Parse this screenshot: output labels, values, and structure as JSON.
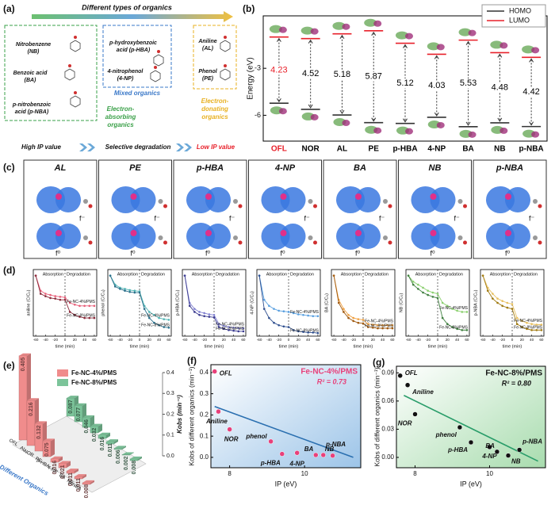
{
  "panel_a": {
    "label": "(a)",
    "header": "Different types of organics",
    "electron_absorbing": {
      "items": [
        [
          "Nitrobenzene",
          "(NB)"
        ],
        [
          "Benzoic acid",
          "(BA)"
        ],
        [
          "p-nitrobenzoic",
          "acid (p-NBA)"
        ]
      ],
      "caption": [
        "Electron-",
        "absorbing",
        "organics"
      ]
    },
    "mixed": {
      "items": [
        [
          "p-hydroxybenzoic",
          "acid (p-HBA)"
        ],
        [
          "4-nitrophenol",
          "(4-NP)"
        ]
      ],
      "caption": "Mixed organics"
    },
    "electron_donating": {
      "items": [
        [
          "Aniline",
          "(AL)"
        ],
        [
          "Phenol",
          "(PE)"
        ]
      ],
      "caption": [
        "Electron-",
        "donating",
        "organics"
      ]
    },
    "footer": [
      "High IP value",
      "Selective degradation",
      "Low IP value"
    ]
  },
  "panel_c": {
    "label": "(c)",
    "molecules": [
      "AL",
      "PE",
      "p-HBA",
      "4-NP",
      "BA",
      "NB",
      "p-NBA"
    ],
    "f_minus": "f⁻",
    "f_zero": "f⁰"
  },
  "chart_data": [
    {
      "type": "energy_levels",
      "panel_label": "(b)",
      "y_label": "Energy (eV)",
      "categories": [
        "OFL",
        "NOR",
        "AL",
        "PE",
        "p-HBA",
        "4-NP",
        "BA",
        "NB",
        "p-NBA"
      ],
      "label_colors": [
        "#e8202a",
        "#000000",
        "#000000",
        "#000000",
        "#000000",
        "#000000",
        "#000000",
        "#000000",
        "#000000"
      ],
      "series": [
        {
          "name": "HOMO",
          "color": "#333333",
          "values": [
            -5.23,
            -5.62,
            -5.98,
            -6.47,
            -6.52,
            -6.13,
            -6.73,
            -6.48,
            -6.72
          ]
        },
        {
          "name": "LUMO",
          "color": "#e8202a",
          "values": [
            -1.0,
            -1.1,
            -0.8,
            -0.6,
            -1.4,
            -2.1,
            -1.2,
            -2.0,
            -2.3
          ]
        }
      ],
      "gaps": [
        4.23,
        4.52,
        5.18,
        5.87,
        5.12,
        4.03,
        5.53,
        4.48,
        4.42
      ],
      "gap_colors": [
        "#e8202a",
        "#000000",
        "#000000",
        "#000000",
        "#000000",
        "#000000",
        "#000000",
        "#000000",
        "#000000"
      ],
      "ylim": [
        -7.65,
        0.35
      ],
      "yticks": [
        -3,
        -6
      ],
      "legend": "upper right"
    },
    {
      "type": "line",
      "panel_label": "(d)",
      "y_label": "aniline (C/C₀)",
      "x_label": "time (min)",
      "annotations": [
        "Absorption",
        "Degradation"
      ],
      "divider": 0,
      "x": [
        -60,
        -50,
        -40,
        -30,
        -20,
        -10,
        0,
        10,
        20,
        30,
        40,
        50,
        60
      ],
      "xlim": [
        -65,
        65
      ],
      "xticks": [
        -60,
        -40,
        -20,
        0,
        20,
        40,
        60
      ],
      "ylim": [
        0,
        1.1
      ],
      "series": [
        {
          "name": "Fe-NC-4%/PMS",
          "color": "#e8607a",
          "values": [
            1,
            0.75,
            0.7,
            0.68,
            0.66,
            0.65,
            0.64,
            0.55,
            0.52,
            0.5,
            0.5,
            0.5,
            0.5
          ]
        },
        {
          "name": "Fe-NC-8%/PMS",
          "color": "#8a2a3a",
          "values": [
            1,
            0.7,
            0.66,
            0.63,
            0.62,
            0.6,
            0.6,
            0.4,
            0.35,
            0.32,
            0.3,
            0.3,
            0.3
          ]
        }
      ]
    },
    {
      "type": "line",
      "y_label": "phenol (C/C₀)",
      "x_label": "time (min)",
      "annotations": [
        "Absorption",
        "Degradation"
      ],
      "divider": 0,
      "x": [
        -60,
        -50,
        -40,
        -30,
        -20,
        -10,
        0,
        10,
        20,
        30,
        40,
        50,
        60
      ],
      "xlim": [
        -65,
        65
      ],
      "xticks": [
        -60,
        -40,
        -20,
        0,
        20,
        40,
        60
      ],
      "ylim": [
        0,
        1.1
      ],
      "series": [
        {
          "name": "Fe-NC-4%/PMS",
          "color": "#4fb3b3",
          "values": [
            1,
            0.85,
            0.8,
            0.78,
            0.76,
            0.75,
            0.74,
            0.5,
            0.4,
            0.35,
            0.3,
            0.28,
            0.27
          ]
        },
        {
          "name": "Fe-NC-8%/PMS",
          "color": "#2a6f8a",
          "values": [
            1,
            0.82,
            0.78,
            0.75,
            0.73,
            0.72,
            0.72,
            0.45,
            0.3,
            0.22,
            0.18,
            0.15,
            0.14
          ]
        }
      ]
    },
    {
      "type": "line",
      "y_label": "p-HBA (C/C₀)",
      "x_label": "time (min)",
      "annotations": [
        "Absorption",
        "Degradation"
      ],
      "divider": 0,
      "x": [
        -60,
        -50,
        -40,
        -30,
        -20,
        -10,
        0,
        10,
        20,
        30,
        40,
        50,
        60
      ],
      "xlim": [
        -65,
        65
      ],
      "xticks": [
        -60,
        -40,
        -20,
        0,
        20,
        40,
        60
      ],
      "ylim": [
        0,
        1.1
      ],
      "series": [
        {
          "name": "Fe-NC-4%/PMS",
          "color": "#8080d0",
          "values": [
            1,
            0.55,
            0.45,
            0.4,
            0.38,
            0.36,
            0.35,
            0.2,
            0.17,
            0.15,
            0.14,
            0.13,
            0.13
          ]
        },
        {
          "name": "Fe-NC-8%/PMS",
          "color": "#3b3b90",
          "values": [
            1,
            0.5,
            0.4,
            0.35,
            0.33,
            0.32,
            0.31,
            0.15,
            0.12,
            0.1,
            0.09,
            0.08,
            0.08
          ]
        }
      ]
    },
    {
      "type": "line",
      "y_label": "4-NP (C/C₀)",
      "x_label": "time (min)",
      "annotations": [
        "Absorption",
        "Degradation"
      ],
      "divider": 0,
      "x": [
        -60,
        -50,
        -40,
        -30,
        -20,
        -10,
        0,
        10,
        20,
        30,
        40,
        50,
        60
      ],
      "xlim": [
        -65,
        65
      ],
      "xticks": [
        -60,
        -40,
        -20,
        0,
        20,
        40,
        60
      ],
      "ylim": [
        0,
        1.1
      ],
      "series": [
        {
          "name": "Fe-NC-4%/PMS",
          "color": "#5aa0e0",
          "values": [
            1,
            0.6,
            0.5,
            0.45,
            0.42,
            0.41,
            0.4,
            0.38,
            0.36,
            0.35,
            0.34,
            0.33,
            0.33
          ]
        },
        {
          "name": "Fe-NC-8%/PMS",
          "color": "#2f4f8f",
          "values": [
            1,
            0.45,
            0.3,
            0.22,
            0.18,
            0.16,
            0.15,
            0.1,
            0.08,
            0.07,
            0.06,
            0.06,
            0.05
          ]
        }
      ]
    },
    {
      "type": "line",
      "y_label": "BA (C/C₀)",
      "x_label": "time (min)",
      "annotations": [
        "Absorption",
        "Degradation"
      ],
      "divider": 0,
      "x": [
        -60,
        -50,
        -40,
        -30,
        -20,
        -10,
        0,
        10,
        20,
        30,
        40,
        50,
        60
      ],
      "xlim": [
        -65,
        65
      ],
      "xticks": [
        -60,
        -40,
        -20,
        0,
        20,
        40,
        60
      ],
      "ylim": [
        0,
        1.1
      ],
      "series": [
        {
          "name": "Fe-NC-4%/PMS",
          "color": "#f0a040",
          "values": [
            1,
            0.6,
            0.45,
            0.35,
            0.3,
            0.28,
            0.27,
            0.2,
            0.19,
            0.18,
            0.18,
            0.18,
            0.18
          ]
        },
        {
          "name": "Fe-NC-8%/PMS",
          "color": "#a05a10",
          "values": [
            1,
            0.55,
            0.4,
            0.3,
            0.25,
            0.22,
            0.21,
            0.15,
            0.14,
            0.13,
            0.13,
            0.13,
            0.13
          ]
        }
      ]
    },
    {
      "type": "line",
      "y_label": "NB (C/C₀)",
      "x_label": "time (min)",
      "annotations": [
        "Absorption",
        "Degradation"
      ],
      "divider": 0,
      "x": [
        -60,
        -50,
        -40,
        -30,
        -20,
        -10,
        0,
        10,
        20,
        30,
        40,
        50,
        60
      ],
      "xlim": [
        -65,
        65
      ],
      "xticks": [
        -60,
        -40,
        -20,
        0,
        20,
        40,
        60
      ],
      "ylim": [
        0,
        1.1
      ],
      "series": [
        {
          "name": "Fe-NC-4%/PMS",
          "color": "#8cd070",
          "values": [
            1,
            0.9,
            0.85,
            0.8,
            0.75,
            0.72,
            0.7,
            0.55,
            0.5,
            0.45,
            0.42,
            0.4,
            0.4
          ]
        },
        {
          "name": "Fe-NC-8%/PMS",
          "color": "#3f7f3f",
          "values": [
            1,
            0.85,
            0.78,
            0.72,
            0.68,
            0.65,
            0.63,
            0.3,
            0.2,
            0.15,
            0.12,
            0.1,
            0.1
          ]
        }
      ]
    },
    {
      "type": "line",
      "y_label": "p-NBA (C/C₀)",
      "x_label": "time (min)",
      "annotations": [
        "Absorption",
        "Degradation"
      ],
      "divider": 0,
      "x": [
        -60,
        -50,
        -40,
        -30,
        -20,
        -10,
        0,
        10,
        20,
        30,
        40,
        50,
        60
      ],
      "xlim": [
        -65,
        65
      ],
      "xticks": [
        -60,
        -40,
        -20,
        0,
        20,
        40,
        60
      ],
      "ylim": [
        0,
        1.1
      ],
      "series": [
        {
          "name": "Fe-NC-4%/PMS",
          "color": "#e8c060",
          "values": [
            1,
            0.8,
            0.7,
            0.62,
            0.58,
            0.55,
            0.53,
            0.3,
            0.25,
            0.22,
            0.2,
            0.19,
            0.19
          ]
        },
        {
          "name": "Fe-NC-8%/PMS",
          "color": "#a07a10",
          "values": [
            1,
            0.75,
            0.62,
            0.55,
            0.5,
            0.47,
            0.45,
            0.2,
            0.15,
            0.12,
            0.1,
            0.1,
            0.1
          ]
        }
      ]
    },
    {
      "type": "bar3d",
      "panel_label": "(e)",
      "x_label": "Different Organics",
      "z_label": "Kobs (min⁻¹)",
      "categories": [
        "OFL",
        "AL",
        "NOR",
        "PE",
        "p-HBA",
        "4-NP",
        "BA",
        "NB",
        "p-NBA"
      ],
      "series": [
        {
          "name": "Fe-NC-4%/PMS",
          "color": "#f08c8c",
          "values": [
            0.405,
            0.216,
            0.132,
            0.075,
            0.016,
            0.021,
            0.011,
            0.011,
            0.008
          ]
        },
        {
          "name": "Fe-NC-8%/PMS",
          "color": "#7cc49a",
          "values": [
            0.087,
            0.077,
            0.046,
            0.032,
            0.016,
            0.011,
            0.006,
            0.002,
            0.008
          ]
        }
      ],
      "zlim": [
        0,
        0.4
      ],
      "zticks": [
        {
          "value": 0,
          "label": "0.0"
        },
        0.1,
        0.2,
        0.3,
        0.4
      ],
      "legend": "upper center"
    },
    {
      "type": "scatter",
      "panel_label": "(f)",
      "title": "Fe-NC-4%/PMS",
      "annotation": "R² = 0.73",
      "x_label": "IP (eV)",
      "y_label": "Kobs of different organics (min⁻¹)",
      "point_labels": [
        "OFL",
        "Aniline",
        "NOR",
        "phenol",
        "p-HBA",
        "4-NP",
        "BA",
        "NB",
        "p-NBA"
      ],
      "x": [
        7.6,
        7.7,
        8.0,
        9.1,
        9.4,
        9.8,
        10.3,
        10.5,
        10.75
      ],
      "values": [
        0.405,
        0.216,
        0.132,
        0.075,
        0.016,
        0.021,
        0.011,
        0.011,
        0.008
      ],
      "color": "#e8407a",
      "fit": {
        "x": [
          7.6,
          11.3
        ],
        "y": [
          0.24,
          0.0
        ]
      },
      "fit_color": "#2a6fb0",
      "xlim": [
        7.5,
        11.5
      ],
      "ylim": [
        -0.049,
        0.437
      ],
      "xticks": [
        8,
        10
      ],
      "yticks": [
        {
          "value": 0,
          "label": "0.0"
        },
        0.1,
        0.2,
        0.3,
        0.4
      ]
    },
    {
      "type": "scatter",
      "panel_label": "(g)",
      "title": "Fe-NC-8%/PMS",
      "annotation": "R² = 0.80",
      "x_label": "IP (eV)",
      "y_label": "Kobs of different organics (min⁻¹)",
      "point_labels": [
        "OFL",
        "Aniline",
        "NOR",
        "phenol",
        "p-HBA",
        "4-NP",
        "BA",
        "NB",
        "p-NBA"
      ],
      "x": [
        7.6,
        7.8,
        8.0,
        9.2,
        9.5,
        10.0,
        10.2,
        10.5,
        10.8
      ],
      "values": [
        0.087,
        0.077,
        0.046,
        0.032,
        0.016,
        0.011,
        0.006,
        0.002,
        0.008
      ],
      "color": "#111111",
      "fit": {
        "x": [
          7.7,
          11.3
        ],
        "y": [
          0.066,
          -0.004
        ]
      },
      "fit_color": "#2a9d6a",
      "xlim": [
        7.5,
        11.5
      ],
      "ylim": [
        -0.011,
        0.097
      ],
      "xticks": [
        8,
        10
      ],
      "yticks": [
        {
          "value": 0,
          "label": "0.00"
        },
        0.03,
        0.06,
        0.09
      ]
    }
  ]
}
